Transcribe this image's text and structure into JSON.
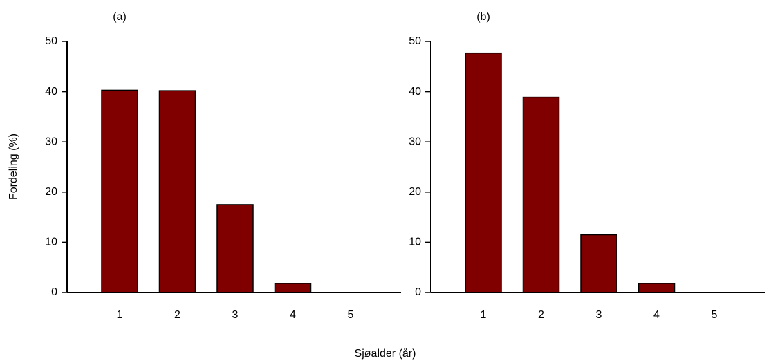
{
  "chart_data": [
    {
      "type": "bar",
      "title": "(a)",
      "ylabel": "Fordeling (%)",
      "xlabel": "Sjøalder (år)",
      "categories": [
        "1",
        "2",
        "3",
        "4",
        "5"
      ],
      "values": [
        40.3,
        40.2,
        17.5,
        1.8,
        0
      ],
      "color": "#800000",
      "ylim": [
        0,
        50
      ],
      "yticks": [
        0,
        10,
        20,
        30,
        40,
        50
      ]
    },
    {
      "type": "bar",
      "title": "(b)",
      "categories": [
        "1",
        "2",
        "3",
        "4",
        "5"
      ],
      "values": [
        47.7,
        38.9,
        11.5,
        1.8,
        0
      ],
      "color": "#800000",
      "ylim": [
        0,
        50
      ],
      "yticks": [
        0,
        10,
        20,
        30,
        40,
        50
      ]
    }
  ]
}
